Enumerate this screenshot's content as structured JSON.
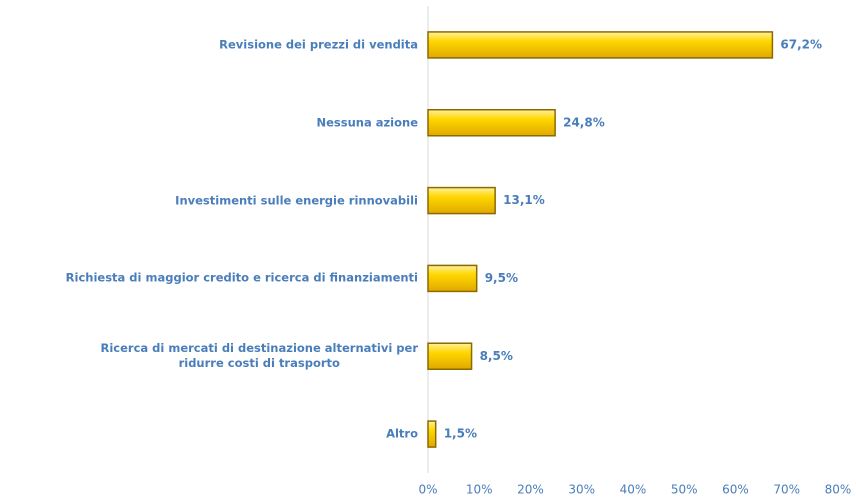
{
  "chart_data": {
    "type": "bar",
    "orientation": "horizontal",
    "categories": [
      "Revisione dei prezzi di vendita",
      "Nessuna azione",
      "Investimenti sulle energie rinnovabili",
      "Richiesta di maggior credito e ricerca di finanziamenti",
      "Ricerca di mercati di destinazione alternativi per\nridurre costi di trasporto",
      "Altro"
    ],
    "values": [
      67.2,
      24.8,
      13.1,
      9.5,
      8.5,
      1.5
    ],
    "value_labels": [
      "67,2%",
      "24,8%",
      "13,1%",
      "9,5%",
      "8,5%",
      "1,5%"
    ],
    "color": "#ffcc00",
    "xlim": [
      0,
      80
    ],
    "xticks": [
      {
        "value": 0,
        "label": "0%"
      },
      {
        "value": 10,
        "label": "10%"
      },
      {
        "value": 20,
        "label": "20%"
      },
      {
        "value": 30,
        "label": "30%"
      },
      {
        "value": 40,
        "label": "40%"
      },
      {
        "value": 50,
        "label": "50%"
      },
      {
        "value": 60,
        "label": "60%"
      },
      {
        "value": 70,
        "label": "70%"
      },
      {
        "value": 80,
        "label": "80%"
      }
    ]
  }
}
